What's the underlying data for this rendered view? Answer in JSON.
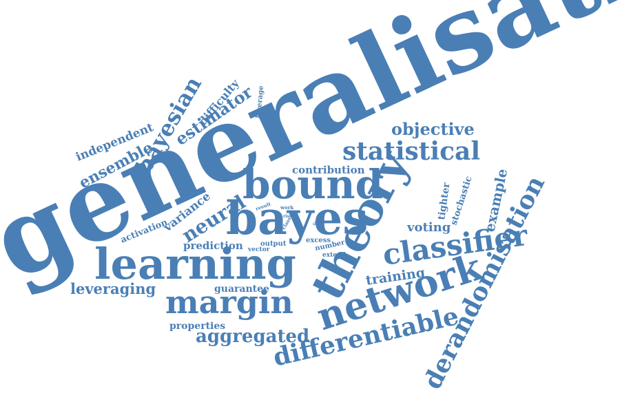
{
  "color": "#4a7fb5",
  "words": {
    "generalisation": "generalisation",
    "learning": "learning",
    "bayes": "bayes",
    "bound": "bound",
    "theory": "theory",
    "network": "network",
    "margin": "margin",
    "classifier": "classifier",
    "statistical": "statistical",
    "differentiable": "differentiable",
    "derandomisation": "derandomisation",
    "aggregated": "aggregated",
    "neural": "neural",
    "bayesian": "bayesian",
    "estimator": "estimator",
    "objective": "objective",
    "ensemble": "ensemble",
    "independent": "independent",
    "difficulty": "difficulty",
    "leverage": "leverage",
    "contribution": "contribution",
    "variance": "variance",
    "activation": "activation",
    "prediction": "prediction",
    "leveraging": "leveraging",
    "guarantee": "guarantee",
    "properties": "properties",
    "training": "training",
    "voting": "voting",
    "tighter": "tighter",
    "stochastic": "stochastic",
    "example": "example",
    "result": "result",
    "work": "work",
    "risk": "risk",
    "class": "class",
    "tool": "tool",
    "vector": "vector",
    "output": "output",
    "excess": "excess",
    "number": "number",
    "extend": "extend"
  }
}
